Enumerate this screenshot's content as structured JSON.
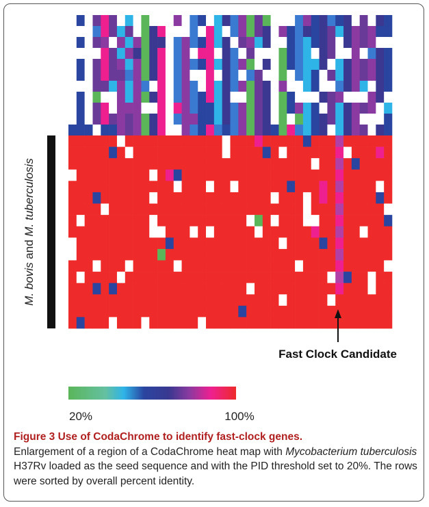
{
  "figure": {
    "y_label": [
      "M. bovis",
      " and ",
      "M. tuberculosis"
    ],
    "annotation": "Fast Clock Candidate",
    "colorbar": {
      "min_label": "20%",
      "max_label": "100%"
    }
  },
  "caption": {
    "title": "Figure 3 Use of CodaChrome to identify fast-clock genes.",
    "body": [
      "Enlargement of a region of a CodaChrome heat map with ",
      "Mycobacterium tuberculosis",
      " H37Rv loaded as the seed sequence and with the PID threshold set to 20%. The rows were sorted by overall percent identity."
    ]
  }
}
